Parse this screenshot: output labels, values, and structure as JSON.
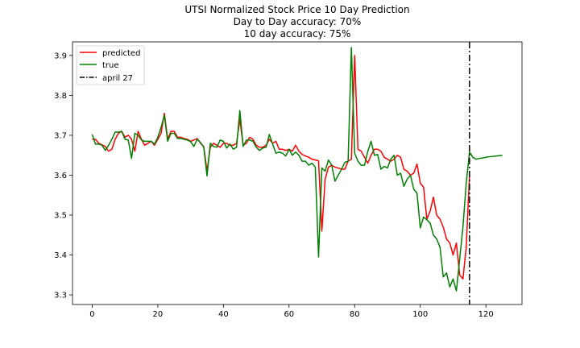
{
  "chart_data": {
    "type": "line",
    "title": [
      "UTSI Normalized Stock Price 10 Day Prediction",
      "Day to Day accuracy: 70%",
      "10 day accuracy: 75%"
    ],
    "xlabel": "",
    "ylabel": "",
    "xlim": [
      -6,
      131
    ],
    "ylim": [
      3.276,
      3.934
    ],
    "xticks": [
      0,
      20,
      40,
      60,
      80,
      100,
      120
    ],
    "yticks": [
      3.3,
      3.4,
      3.5,
      3.6,
      3.7,
      3.8,
      3.9
    ],
    "grid": false,
    "legend_position": "top-left",
    "series": [
      {
        "name": "predicted",
        "color": "#ff0000",
        "style": "solid",
        "x": [
          0,
          1,
          2,
          3,
          4,
          5,
          6,
          7,
          8,
          9,
          10,
          11,
          12,
          13,
          14,
          15,
          16,
          17,
          18,
          19,
          20,
          21,
          22,
          23,
          24,
          25,
          26,
          27,
          28,
          29,
          30,
          31,
          32,
          33,
          34,
          35,
          36,
          37,
          38,
          39,
          40,
          41,
          42,
          43,
          44,
          45,
          46,
          47,
          48,
          49,
          50,
          51,
          52,
          53,
          54,
          55,
          56,
          57,
          58,
          59,
          60,
          61,
          62,
          63,
          64,
          65,
          66,
          67,
          68,
          69,
          70,
          71,
          72,
          73,
          74,
          75,
          76,
          77,
          78,
          79,
          80,
          81,
          82,
          83,
          84,
          85,
          86,
          87,
          88,
          89,
          90,
          91,
          92,
          93,
          94,
          95,
          96,
          97,
          98,
          99,
          100,
          101,
          102,
          103,
          104,
          105,
          106,
          107,
          108,
          109,
          110,
          111,
          112,
          113,
          114,
          115
        ],
        "y": [
          3.69,
          3.69,
          3.68,
          3.676,
          3.672,
          3.66,
          3.665,
          3.69,
          3.705,
          3.71,
          3.695,
          3.7,
          3.69,
          3.66,
          3.71,
          3.69,
          3.675,
          3.68,
          3.685,
          3.675,
          3.69,
          3.705,
          3.755,
          3.69,
          3.71,
          3.71,
          3.695,
          3.695,
          3.692,
          3.69,
          3.685,
          3.688,
          3.692,
          3.68,
          3.672,
          3.61,
          3.67,
          3.68,
          3.675,
          3.67,
          3.68,
          3.68,
          3.675,
          3.675,
          3.68,
          3.74,
          3.675,
          3.68,
          3.695,
          3.69,
          3.675,
          3.67,
          3.67,
          3.675,
          3.69,
          3.68,
          3.685,
          3.665,
          3.665,
          3.662,
          3.665,
          3.66,
          3.675,
          3.66,
          3.652,
          3.648,
          3.645,
          3.64,
          3.638,
          3.636,
          3.46,
          3.59,
          3.62,
          3.625,
          3.62,
          3.618,
          3.615,
          3.615,
          3.635,
          3.64,
          3.9,
          3.665,
          3.66,
          3.645,
          3.63,
          3.65,
          3.665,
          3.665,
          3.66,
          3.645,
          3.64,
          3.635,
          3.64,
          3.65,
          3.645,
          3.615,
          3.61,
          3.6,
          3.605,
          3.628,
          3.58,
          3.57,
          3.49,
          3.51,
          3.545,
          3.5,
          3.49,
          3.47,
          3.44,
          3.43,
          3.4,
          3.43,
          3.35,
          3.34,
          3.42,
          3.6
        ]
      },
      {
        "name": "true",
        "color": "#008000",
        "style": "solid",
        "x": [
          0,
          1,
          2,
          3,
          4,
          5,
          6,
          7,
          8,
          9,
          10,
          11,
          12,
          13,
          14,
          15,
          16,
          17,
          18,
          19,
          20,
          21,
          22,
          23,
          24,
          25,
          26,
          27,
          28,
          29,
          30,
          31,
          32,
          33,
          34,
          35,
          36,
          37,
          38,
          39,
          40,
          41,
          42,
          43,
          44,
          45,
          46,
          47,
          48,
          49,
          50,
          51,
          52,
          53,
          54,
          55,
          56,
          57,
          58,
          59,
          60,
          61,
          62,
          63,
          64,
          65,
          66,
          67,
          68,
          69,
          70,
          71,
          72,
          73,
          74,
          75,
          76,
          77,
          78,
          79,
          80,
          81,
          82,
          83,
          84,
          85,
          86,
          87,
          88,
          89,
          90,
          91,
          92,
          93,
          94,
          95,
          96,
          97,
          98,
          99,
          100,
          101,
          102,
          103,
          104,
          105,
          106,
          107,
          108,
          109,
          110,
          111,
          112,
          113,
          114,
          115,
          116,
          117,
          118,
          119,
          120,
          121,
          122,
          123,
          124,
          125
        ],
        "y": [
          3.702,
          3.678,
          3.678,
          3.675,
          3.662,
          3.675,
          3.69,
          3.708,
          3.708,
          3.71,
          3.69,
          3.688,
          3.642,
          3.705,
          3.7,
          3.688,
          3.685,
          3.685,
          3.685,
          3.678,
          3.695,
          3.72,
          3.75,
          3.685,
          3.705,
          3.705,
          3.692,
          3.692,
          3.69,
          3.688,
          3.684,
          3.672,
          3.69,
          3.682,
          3.67,
          3.598,
          3.68,
          3.672,
          3.67,
          3.688,
          3.685,
          3.668,
          3.678,
          3.665,
          3.67,
          3.762,
          3.672,
          3.688,
          3.688,
          3.685,
          3.67,
          3.662,
          3.668,
          3.67,
          3.702,
          3.678,
          3.655,
          3.658,
          3.655,
          3.648,
          3.665,
          3.65,
          3.658,
          3.65,
          3.635,
          3.635,
          3.625,
          3.63,
          3.62,
          3.395,
          3.618,
          3.61,
          3.638,
          3.625,
          3.585,
          3.6,
          3.615,
          3.632,
          3.635,
          3.92,
          3.655,
          3.635,
          3.625,
          3.625,
          3.66,
          3.685,
          3.65,
          3.652,
          3.615,
          3.622,
          3.618,
          3.64,
          3.65,
          3.6,
          3.605,
          3.572,
          3.59,
          3.6,
          3.565,
          3.555,
          3.468,
          3.495,
          3.488,
          3.48,
          3.45,
          3.44,
          3.42,
          3.345,
          3.355,
          3.32,
          3.34,
          3.31,
          3.39,
          3.47,
          3.58,
          3.658,
          3.645,
          3.64,
          3.642,
          3.643,
          3.645,
          3.646,
          3.647,
          3.648,
          3.649,
          3.65
        ]
      },
      {
        "name": "april 27",
        "color": "#000000",
        "style": "dashdot",
        "vertical_x": 115
      }
    ]
  }
}
